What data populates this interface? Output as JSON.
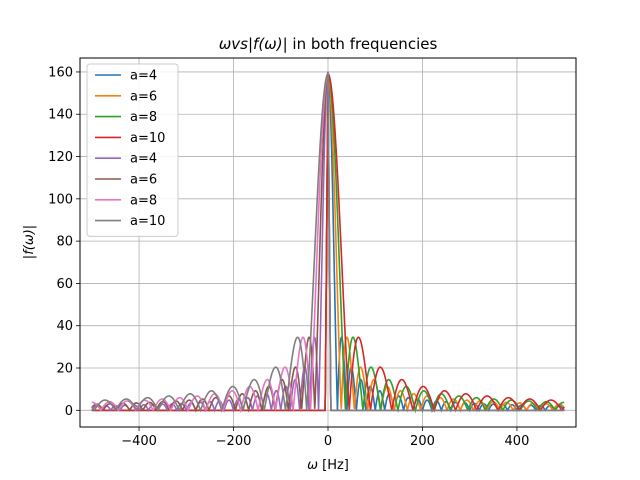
{
  "chart_data": {
    "type": "line",
    "title_parts": [
      "ωvs",
      "|f(ω)|",
      " in both frequencies"
    ],
    "xlabel_parts": [
      "ω",
      " [Hz]"
    ],
    "ylabel": "|f(ω)|",
    "xlim": [
      -525,
      525
    ],
    "ylim": [
      -7.9,
      166.6
    ],
    "xticks": [
      -400,
      -200,
      0,
      200,
      400
    ],
    "xtick_labels": [
      "−400",
      "−200",
      "0",
      "200",
      "400"
    ],
    "yticks": [
      0,
      20,
      40,
      60,
      80,
      100,
      120,
      140,
      160
    ],
    "ytick_labels": [
      "0",
      "20",
      "40",
      "60",
      "80",
      "100",
      "120",
      "140",
      "160"
    ],
    "grid": true,
    "legend_position": "top-left",
    "x_domain": [
      -500,
      500
    ],
    "peak_value": 159,
    "series": [
      {
        "name": "a=4",
        "color": "#1f77b4",
        "shift": 0,
        "first_null": 20
      },
      {
        "name": "a=6",
        "color": "#ff7f0e",
        "shift": 0,
        "first_null": 28
      },
      {
        "name": "a=8",
        "color": "#2ca02c",
        "shift": 0,
        "first_null": 37
      },
      {
        "name": "a=10",
        "color": "#d62728",
        "shift": 0,
        "first_null": 45
      },
      {
        "name": "a=4",
        "color": "#9467bd",
        "shift": 0,
        "first_null": -20
      },
      {
        "name": "a=6",
        "color": "#8c564b",
        "shift": 0,
        "first_null": -28
      },
      {
        "name": "a=8",
        "color": "#e377c2",
        "shift": 0,
        "first_null": -37
      },
      {
        "name": "a=10",
        "color": "#7f7f7f",
        "shift": 0,
        "first_null": -45
      }
    ]
  }
}
